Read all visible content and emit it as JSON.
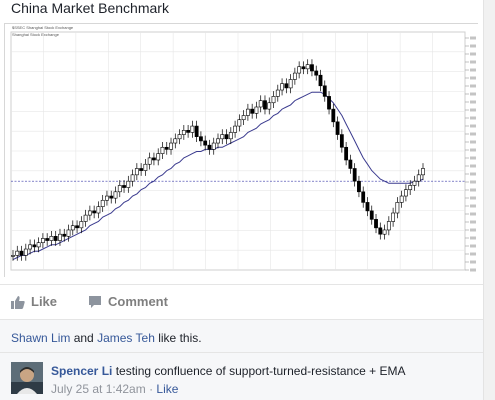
{
  "post": {
    "title": "China Market Benchmark"
  },
  "chart": {
    "header_line1": "$SSEC Shanghai Stock Exchange",
    "header_line2": "Shanghai Stock Exchange",
    "ema_label": "EMA(20)",
    "colors": {
      "price": "#000000",
      "ema": "#3b3b8f",
      "grid": "#e6e6e6",
      "level": "#3a3aa8"
    }
  },
  "chart_data": {
    "type": "line",
    "series": [
      {
        "values": [
          0.05,
          0.07,
          0.05,
          0.08,
          0.1,
          0.09,
          0.11,
          0.13,
          0.12,
          0.14,
          0.12,
          0.15,
          0.14,
          0.17,
          0.19,
          0.18,
          0.21,
          0.24,
          0.26,
          0.25,
          0.28,
          0.31,
          0.33,
          0.32,
          0.35,
          0.38,
          0.37,
          0.4,
          0.43,
          0.46,
          0.45,
          0.48,
          0.51,
          0.5,
          0.53,
          0.56,
          0.55,
          0.58,
          0.6,
          0.62,
          0.64,
          0.63,
          0.66,
          0.61,
          0.59,
          0.57,
          0.55,
          0.58,
          0.6,
          0.62,
          0.6,
          0.63,
          0.66,
          0.69,
          0.71,
          0.74,
          0.72,
          0.75,
          0.78,
          0.74,
          0.77,
          0.8,
          0.83,
          0.86,
          0.84,
          0.88,
          0.91,
          0.94,
          0.93,
          0.95,
          0.92,
          0.9,
          0.85,
          0.8,
          0.74,
          0.68,
          0.62,
          0.56,
          0.5,
          0.46,
          0.4,
          0.35,
          0.3,
          0.26,
          0.22,
          0.18,
          0.15,
          0.17,
          0.21,
          0.25,
          0.3,
          0.33,
          0.36,
          0.38,
          0.4,
          0.43,
          0.46
        ]
      },
      {
        "values": [
          0.03,
          0.04,
          0.05,
          0.05,
          0.06,
          0.07,
          0.07,
          0.08,
          0.09,
          0.1,
          0.1,
          0.11,
          0.12,
          0.13,
          0.14,
          0.15,
          0.16,
          0.17,
          0.19,
          0.2,
          0.21,
          0.23,
          0.24,
          0.25,
          0.27,
          0.28,
          0.3,
          0.31,
          0.33,
          0.34,
          0.36,
          0.37,
          0.39,
          0.4,
          0.42,
          0.43,
          0.45,
          0.46,
          0.48,
          0.49,
          0.51,
          0.52,
          0.53,
          0.54,
          0.54,
          0.55,
          0.55,
          0.55,
          0.56,
          0.56,
          0.57,
          0.58,
          0.59,
          0.6,
          0.61,
          0.63,
          0.64,
          0.65,
          0.67,
          0.68,
          0.69,
          0.71,
          0.72,
          0.74,
          0.75,
          0.76,
          0.78,
          0.79,
          0.8,
          0.81,
          0.82,
          0.82,
          0.82,
          0.81,
          0.79,
          0.77,
          0.74,
          0.71,
          0.67,
          0.63,
          0.59,
          0.55,
          0.51,
          0.48,
          0.45,
          0.43,
          0.41,
          0.4,
          0.39,
          0.39,
          0.39,
          0.39,
          0.39,
          0.39,
          0.4,
          0.4,
          0.41
        ]
      }
    ],
    "level": 0.4
  },
  "actions": {
    "like_label": "Like",
    "comment_label": "Comment"
  },
  "likes": {
    "user1": "Shawn Lim",
    "and": " and ",
    "user2": "James Teh",
    "suffix": " like this."
  },
  "comment": {
    "author": "Spencer Li",
    "text": " testing confluence of support-turned-resistance + EMA",
    "time": "July 25 at 1:42am",
    "separator": " · ",
    "like_label": "Like"
  }
}
